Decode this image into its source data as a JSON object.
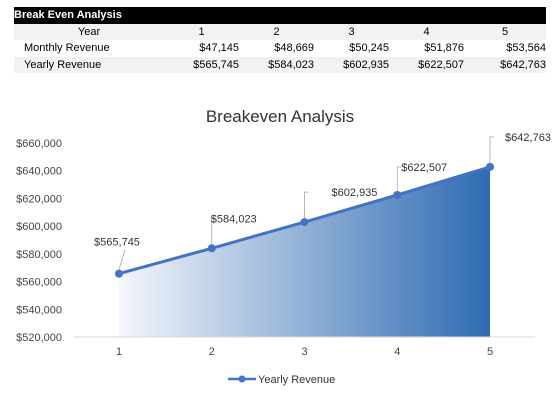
{
  "table": {
    "title": "Break Even Analysis",
    "header_label": "Year",
    "years": [
      "1",
      "2",
      "3",
      "4",
      "5"
    ],
    "rows": [
      {
        "label": "Monthly Revenue",
        "values": [
          "$47,145",
          "$48,669",
          "$50,245",
          "$51,876",
          "$53,564"
        ]
      },
      {
        "label": "Yearly Revenue",
        "values": [
          "$565,745",
          "$584,023",
          "$602,935",
          "$622,507",
          "$642,763"
        ]
      }
    ]
  },
  "chart_data": {
    "type": "area",
    "title": "Breakeven Analysis",
    "x": [
      1,
      2,
      3,
      4,
      5
    ],
    "series": [
      {
        "name": "Yearly Revenue",
        "values": [
          565745,
          584023,
          602935,
          622507,
          642763
        ]
      }
    ],
    "data_labels": [
      "$565,745",
      "$584,023",
      "$602,935",
      "$622,507",
      "$642,763"
    ],
    "y_ticks": [
      "$520,000",
      "$540,000",
      "$560,000",
      "$580,000",
      "$600,000",
      "$620,000",
      "$640,000",
      "$660,000"
    ],
    "ylim": [
      520000,
      660000
    ],
    "x_ticks": [
      "1",
      "2",
      "3",
      "4",
      "5"
    ],
    "legend_position": "bottom",
    "grid": false,
    "colors": {
      "line": "#4472C4",
      "fill_start": "#F4F6FB",
      "fill_end": "#2E6BB2"
    }
  }
}
